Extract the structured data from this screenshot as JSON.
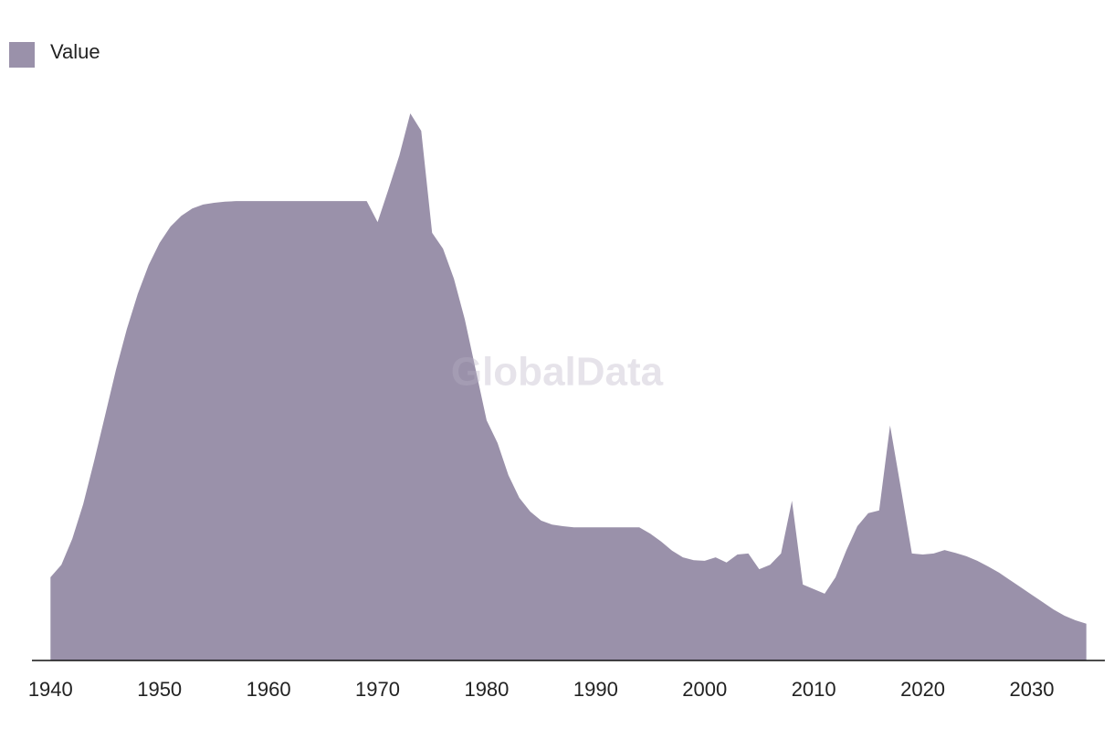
{
  "chart_data": {
    "type": "area",
    "watermark": "GlobalData",
    "x": [
      1940,
      1941,
      1942,
      1943,
      1944,
      1945,
      1946,
      1947,
      1948,
      1949,
      1950,
      1951,
      1952,
      1953,
      1954,
      1955,
      1956,
      1957,
      1958,
      1959,
      1960,
      1961,
      1962,
      1963,
      1964,
      1965,
      1966,
      1967,
      1968,
      1969,
      1970,
      1971,
      1972,
      1973,
      1974,
      1975,
      1976,
      1977,
      1978,
      1979,
      1980,
      1981,
      1982,
      1983,
      1984,
      1985,
      1986,
      1987,
      1988,
      1989,
      1990,
      1991,
      1992,
      1993,
      1994,
      1995,
      1996,
      1997,
      1998,
      1999,
      2000,
      2001,
      2002,
      2003,
      2004,
      2005,
      2006,
      2007,
      2008,
      2009,
      2010,
      2011,
      2012,
      2013,
      2014,
      2015,
      2016,
      2017,
      2018,
      2019,
      2020,
      2021,
      2022,
      2023,
      2024,
      2025,
      2026,
      2027,
      2028,
      2029,
      2030,
      2031,
      2032,
      2033,
      2034,
      2035
    ],
    "series": [
      {
        "name": "Value",
        "color": "#9a91aa",
        "values": [
          14.7,
          16.9,
          21.5,
          27.6,
          35.2,
          43.2,
          51.3,
          58.5,
          64.7,
          69.8,
          73.7,
          76.6,
          78.5,
          79.8,
          80.5,
          80.8,
          81,
          81.1,
          81.1,
          81.1,
          81.1,
          81.1,
          81.1,
          81.1,
          81.1,
          81.1,
          81.1,
          81.1,
          81.1,
          81.1,
          77.4,
          83.2,
          89.2,
          96.6,
          93.5,
          75.5,
          72.7,
          67.4,
          60.2,
          51.3,
          42.4,
          38.4,
          32.7,
          28.7,
          26.3,
          24.7,
          24,
          23.7,
          23.5,
          23.5,
          23.5,
          23.5,
          23.5,
          23.5,
          23.5,
          22.4,
          21,
          19.4,
          18.2,
          17.7,
          17.6,
          18.2,
          17.3,
          18.7,
          18.9,
          16.1,
          16.9,
          18.9,
          28.2,
          13.4,
          12.6,
          11.8,
          14.7,
          19.5,
          23.7,
          26,
          26.5,
          41.5,
          30.3,
          18.9,
          18.7,
          18.9,
          19.5,
          19,
          18.4,
          17.6,
          16.6,
          15.5,
          14.2,
          12.9,
          11.6,
          10.3,
          9,
          7.9,
          7.1,
          6.5
        ]
      }
    ],
    "xlim": [
      1938.3,
      2036.7
    ],
    "xticks": [
      1940,
      1950,
      1960,
      1970,
      1980,
      1990,
      2000,
      2010,
      2020,
      2030
    ],
    "ylim": [
      0,
      100
    ],
    "legend": "top-left"
  }
}
